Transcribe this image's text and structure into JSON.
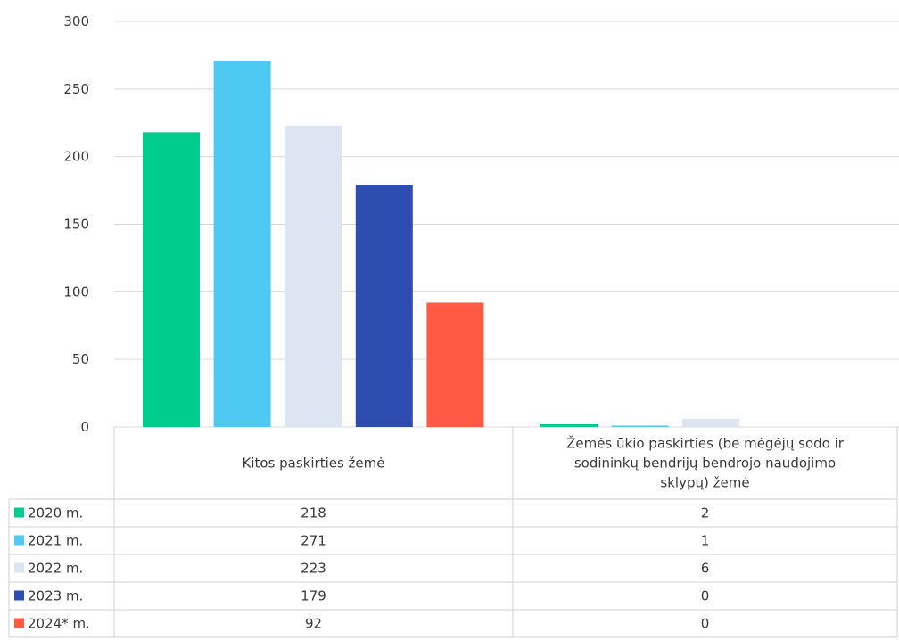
{
  "chart_data": {
    "type": "bar",
    "categories": [
      "Kitos paskirties žemė",
      [
        "Žemės ūkio paskirties (be mėgėjų sodo ir",
        "sodininkų bendrijų bendrojo naudojimo",
        "sklypų) žemė"
      ]
    ],
    "series": [
      {
        "name": "2020 m.",
        "values": [
          218,
          2
        ],
        "color": "#00CC8E"
      },
      {
        "name": "2021 m.",
        "values": [
          271,
          1
        ],
        "color": "#4DC9F2"
      },
      {
        "name": "2022 m.",
        "values": [
          223,
          6
        ],
        "color": "#DEE5F2"
      },
      {
        "name": "2023 m.",
        "values": [
          179,
          0
        ],
        "color": "#2E4DB0"
      },
      {
        "name": "2024* m.",
        "values": [
          92,
          0
        ],
        "color": "#FF5A44"
      }
    ],
    "yticks": [
      0,
      50,
      100,
      150,
      200,
      250,
      300
    ],
    "ylim": [
      0,
      300
    ],
    "title": "",
    "xlabel": "",
    "ylabel": "",
    "grid": true,
    "legend": "data table below chart"
  }
}
